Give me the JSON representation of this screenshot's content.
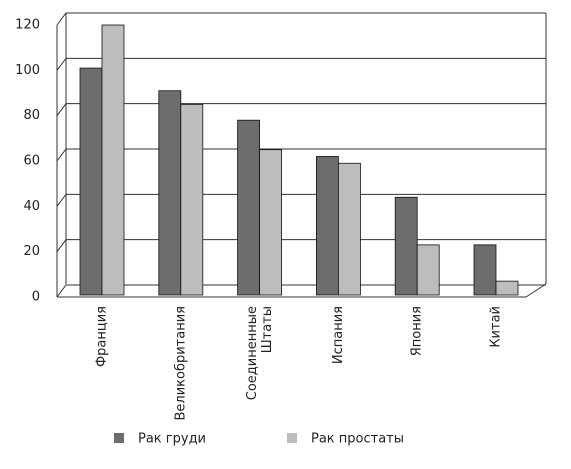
{
  "chart_data": {
    "type": "bar",
    "categories": [
      "Франция",
      "Великобритания",
      "Соединенные Штаты",
      "Испания",
      "Япония",
      "Китай"
    ],
    "series": [
      {
        "name": "Рак груди",
        "color": "#6d6d6d",
        "values": [
          101,
          91,
          78,
          62,
          44,
          23
        ]
      },
      {
        "name": "Рак простаты",
        "color": "#bdbdbd",
        "values": [
          120,
          85,
          65,
          59,
          23,
          7
        ]
      }
    ],
    "ylim": [
      0,
      120
    ],
    "yticks": [
      0,
      20,
      40,
      60,
      80,
      100,
      120
    ],
    "grid": true
  }
}
